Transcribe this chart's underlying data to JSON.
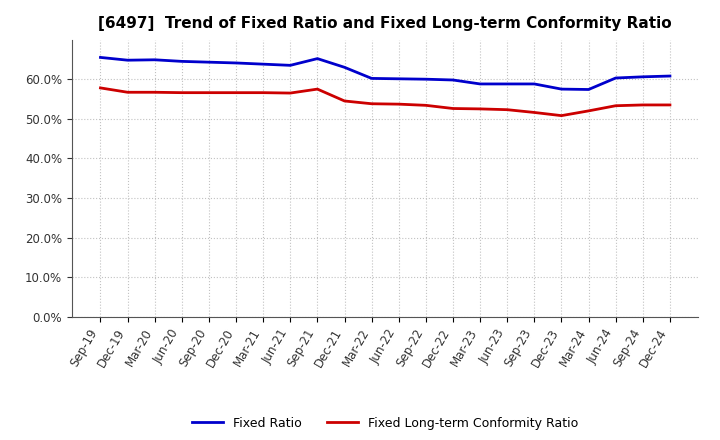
{
  "title": "[6497]  Trend of Fixed Ratio and Fixed Long-term Conformity Ratio",
  "x_labels": [
    "Sep-19",
    "Dec-19",
    "Mar-20",
    "Jun-20",
    "Sep-20",
    "Dec-20",
    "Mar-21",
    "Jun-21",
    "Sep-21",
    "Dec-21",
    "Mar-22",
    "Jun-22",
    "Sep-22",
    "Dec-22",
    "Mar-23",
    "Jun-23",
    "Sep-23",
    "Dec-23",
    "Mar-24",
    "Jun-24",
    "Sep-24",
    "Dec-24"
  ],
  "fixed_ratio": [
    65.5,
    64.8,
    64.9,
    64.5,
    64.3,
    64.1,
    63.8,
    63.5,
    65.2,
    63.0,
    60.2,
    60.1,
    60.0,
    59.8,
    58.8,
    58.8,
    58.8,
    57.5,
    57.4,
    60.3,
    60.6,
    60.8
  ],
  "fixed_lt_ratio": [
    57.8,
    56.7,
    56.7,
    56.6,
    56.6,
    56.6,
    56.6,
    56.5,
    57.5,
    54.5,
    53.8,
    53.7,
    53.4,
    52.6,
    52.5,
    52.3,
    51.6,
    50.8,
    52.0,
    53.3,
    53.5,
    53.5
  ],
  "fixed_ratio_color": "#0000CC",
  "fixed_lt_ratio_color": "#CC0000",
  "background_color": "#FFFFFF",
  "plot_bg_color": "#FFFFFF",
  "grid_color": "#BBBBBB",
  "ylim": [
    0,
    70
  ],
  "yticks": [
    0,
    10,
    20,
    30,
    40,
    50,
    60
  ],
  "legend_fixed": "Fixed Ratio",
  "legend_lt": "Fixed Long-term Conformity Ratio",
  "title_fontsize": 11,
  "tick_fontsize": 8.5,
  "legend_fontsize": 9
}
